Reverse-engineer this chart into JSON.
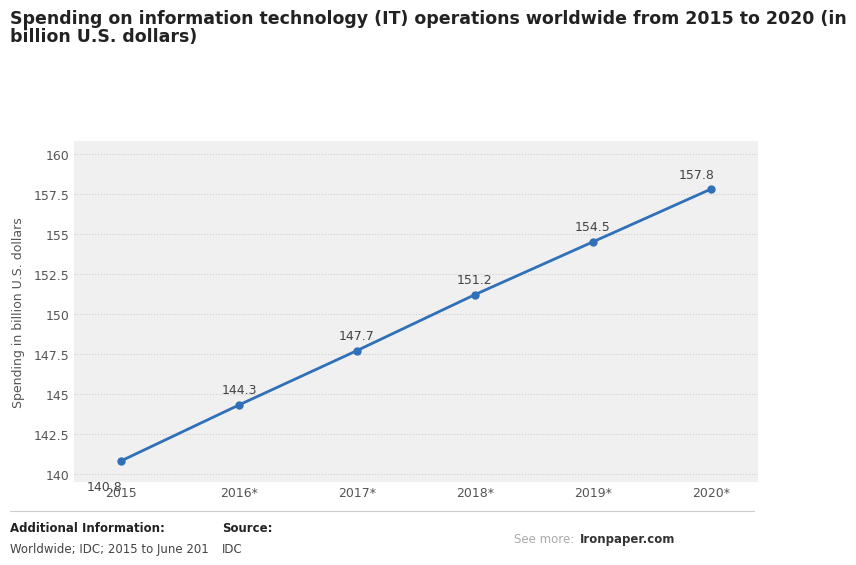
{
  "title_line1": "Spending on information technology (IT) operations worldwide from 2015 to 2020 (in",
  "title_line2": "billion U.S. dollars)",
  "ylabel": "Spending in billion U.S. dollars",
  "categories": [
    "2015",
    "2016*",
    "2017*",
    "2018*",
    "2019*",
    "2020*"
  ],
  "values": [
    140.8,
    144.3,
    147.7,
    151.2,
    154.5,
    157.8
  ],
  "ylim": [
    139.5,
    160.8
  ],
  "yticks": [
    140,
    142.5,
    145,
    147.5,
    150,
    152.5,
    155,
    157.5,
    160
  ],
  "line_color": "#3070b8",
  "marker_color": "#3070b8",
  "bg_color": "#ffffff",
  "plot_bg_color": "#f0f0f0",
  "grid_color": "#cccccc",
  "title_fontsize": 12.5,
  "label_fontsize": 9,
  "tick_fontsize": 9,
  "annotation_fontsize": 9,
  "footer_left_bold": "Additional Information:",
  "footer_left_normal": "Worldwide; IDC; 2015 to June 201",
  "footer_source_bold": "Source:",
  "footer_source_normal": "IDC",
  "footer_right_gray": "See more: ",
  "footer_right_bold": "Ironpaper.com",
  "marker_size": 5,
  "line_width": 2.0
}
